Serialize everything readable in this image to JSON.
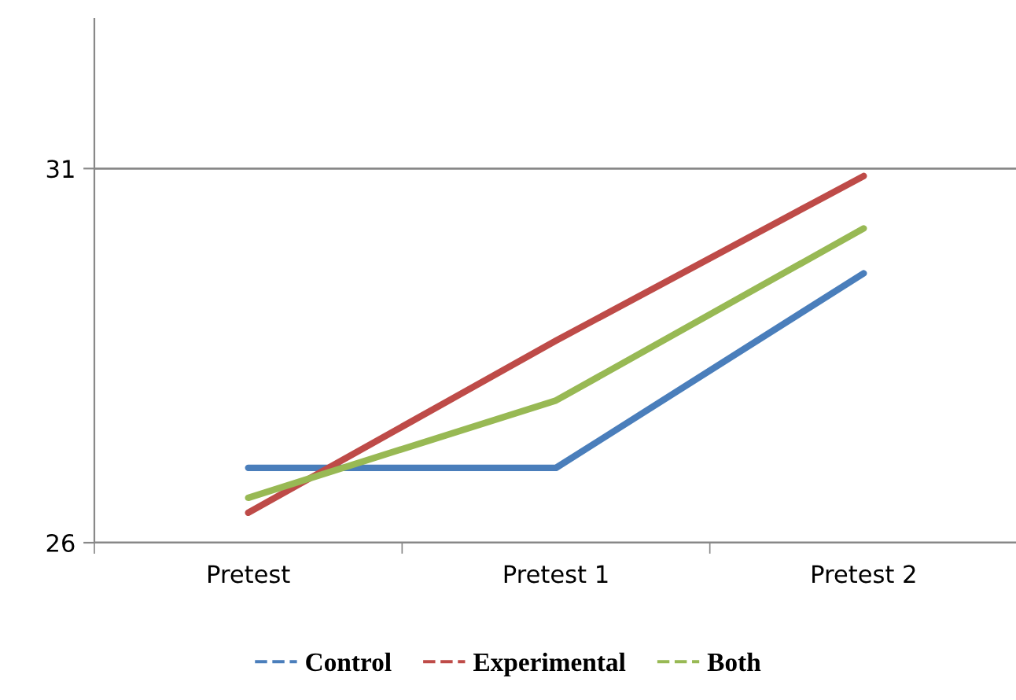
{
  "chart_data": {
    "type": "line",
    "categories": [
      "Pretest",
      "Pretest 1",
      "Pretest 2"
    ],
    "series": [
      {
        "name": "Control",
        "color": "#4a7ebb",
        "values": [
          27.0,
          27.0,
          29.6
        ]
      },
      {
        "name": "Experimental",
        "color": "#be4b48",
        "values": [
          26.4,
          28.7,
          30.9
        ]
      },
      {
        "name": "Both",
        "color": "#98b954",
        "values": [
          26.6,
          27.9,
          30.2
        ]
      }
    ],
    "ylim": [
      26,
      33
    ],
    "yticks": [
      26,
      31
    ],
    "grid": "y",
    "legend": "bottom",
    "marker": "none",
    "line_style": "solid"
  }
}
